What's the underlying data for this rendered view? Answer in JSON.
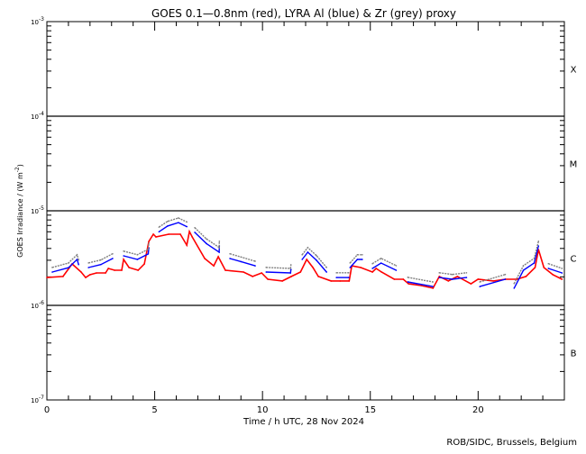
{
  "chart_data": {
    "type": "line",
    "title": "GOES 0.1—0.8nm (red), LYRA Al (blue) & Zr (grey) proxy",
    "xlabel": "Time / h UTC, 28 Nov 2024",
    "ylabel": "GOES Irradiance / (W m",
    "ylabel_sup": "-2",
    "ylabel_end": ")",
    "yscale": "log",
    "xlim": [
      0,
      24
    ],
    "ylim": [
      1e-07,
      0.001
    ],
    "xticks": [
      {
        "v": 0,
        "label": "0"
      },
      {
        "v": 5,
        "label": "5"
      },
      {
        "v": 10,
        "label": "10"
      },
      {
        "v": 15,
        "label": "15"
      },
      {
        "v": 20,
        "label": "20"
      }
    ],
    "yticks": [
      {
        "exp": -3,
        "base": "10",
        "sup": "-3"
      },
      {
        "exp": -4,
        "base": "10",
        "sup": "-4"
      },
      {
        "exp": -5,
        "base": "10",
        "sup": "-5"
      },
      {
        "exp": -6,
        "base": "10",
        "sup": "-6"
      },
      {
        "exp": -7,
        "base": "10",
        "sup": "-7"
      }
    ],
    "flare_classes": [
      {
        "label": "X",
        "exp": -3.5
      },
      {
        "label": "M",
        "exp": -4.5
      },
      {
        "label": "C",
        "exp": -5.5
      },
      {
        "label": "B",
        "exp": -6.5
      }
    ],
    "class_lines": [
      -4,
      -5,
      -6
    ],
    "series": [
      {
        "name": "GOES 0.1-0.8nm",
        "color": "#ff0000",
        "unit_scale": 1e-06,
        "segments": [
          [
            [
              0,
              1.97
            ],
            [
              0.75,
              2.02
            ],
            [
              1.17,
              2.74
            ],
            [
              1.59,
              2.25
            ],
            [
              1.8,
              1.97
            ],
            [
              2.0,
              2.11
            ],
            [
              2.3,
              2.2
            ],
            [
              2.72,
              2.2
            ],
            [
              2.85,
              2.46
            ],
            [
              3.14,
              2.35
            ],
            [
              3.47,
              2.35
            ],
            [
              3.56,
              3.06
            ],
            [
              3.81,
              2.51
            ],
            [
              4.23,
              2.35
            ],
            [
              4.52,
              2.74
            ],
            [
              4.73,
              4.74
            ],
            [
              4.94,
              5.65
            ],
            [
              5.06,
              5.29
            ],
            [
              5.65,
              5.65
            ],
            [
              6.19,
              5.65
            ],
            [
              6.49,
              4.34
            ],
            [
              6.61,
              6.04
            ],
            [
              6.74,
              5.29
            ],
            [
              7.32,
              3.13
            ],
            [
              7.74,
              2.62
            ],
            [
              7.95,
              3.27
            ],
            [
              8.28,
              2.35
            ],
            [
              9.12,
              2.25
            ],
            [
              9.54,
              2.02
            ],
            [
              9.96,
              2.2
            ],
            [
              10.25,
              1.89
            ],
            [
              10.92,
              1.81
            ],
            [
              11.34,
              2.02
            ],
            [
              11.76,
              2.25
            ],
            [
              12.05,
              3.06
            ],
            [
              12.34,
              2.51
            ],
            [
              12.59,
              2.02
            ],
            [
              13.18,
              1.81
            ],
            [
              13.6,
              1.81
            ],
            [
              14.02,
              1.81
            ],
            [
              14.14,
              2.62
            ],
            [
              14.56,
              2.51
            ],
            [
              15.1,
              2.25
            ],
            [
              15.27,
              2.46
            ],
            [
              15.52,
              2.25
            ],
            [
              16.11,
              1.89
            ],
            [
              16.53,
              1.89
            ],
            [
              16.78,
              1.69
            ],
            [
              17.36,
              1.62
            ],
            [
              17.91,
              1.52
            ],
            [
              18.2,
              2.02
            ],
            [
              18.62,
              1.81
            ],
            [
              19.04,
              2.02
            ],
            [
              19.67,
              1.69
            ],
            [
              20.0,
              1.89
            ],
            [
              20.71,
              1.81
            ],
            [
              21.26,
              1.89
            ],
            [
              21.8,
              1.89
            ],
            [
              22.22,
              2.02
            ],
            [
              22.64,
              2.51
            ],
            [
              22.8,
              3.89
            ],
            [
              23.05,
              2.51
            ],
            [
              23.47,
              2.11
            ],
            [
              23.89,
              1.89
            ]
          ]
        ]
      },
      {
        "name": "LYRA Al proxy",
        "color": "#0000ff",
        "unit_scale": 1e-06,
        "segments": [
          [
            [
              0.25,
              2.25
            ],
            [
              1.0,
              2.5
            ],
            [
              1.4,
              3.06
            ],
            [
              1.47,
              2.7
            ]
          ],
          [
            [
              1.93,
              2.51
            ],
            [
              2.5,
              2.7
            ],
            [
              3.05,
              3.13
            ]
          ],
          [
            [
              3.56,
              3.34
            ],
            [
              4.2,
              3.06
            ],
            [
              4.7,
              3.5
            ],
            [
              4.73,
              4.06
            ]
          ],
          [
            [
              5.2,
              6.0
            ],
            [
              5.6,
              6.9
            ],
            [
              6.1,
              7.5
            ],
            [
              6.49,
              6.8
            ]
          ],
          [
            [
              6.86,
              5.91
            ],
            [
              7.4,
              4.5
            ],
            [
              7.99,
              3.65
            ],
            [
              8.0,
              4.25
            ]
          ],
          [
            [
              8.49,
              3.13
            ],
            [
              9.0,
              2.9
            ],
            [
              9.66,
              2.62
            ]
          ],
          [
            [
              10.17,
              2.25
            ],
            [
              11.3,
              2.2
            ],
            [
              11.32,
              2.4
            ]
          ],
          [
            [
              11.84,
              3.06
            ],
            [
              12.1,
              3.65
            ],
            [
              12.5,
              3.0
            ],
            [
              12.97,
              2.25
            ]
          ],
          [
            [
              13.43,
              1.97
            ],
            [
              14.0,
              1.97
            ]
          ],
          [
            [
              14.06,
              2.51
            ],
            [
              14.4,
              3.06
            ],
            [
              14.63,
              3.06
            ]
          ],
          [
            [
              15.1,
              2.46
            ],
            [
              15.5,
              2.8
            ],
            [
              16.2,
              2.35
            ]
          ],
          [
            [
              16.74,
              1.77
            ],
            [
              17.9,
              1.58
            ]
          ],
          [
            [
              18.2,
              1.97
            ],
            [
              18.8,
              1.89
            ],
            [
              19.46,
              1.97
            ]
          ],
          [
            [
              20.08,
              1.58
            ],
            [
              21.26,
              1.89
            ]
          ],
          [
            [
              21.67,
              1.52
            ],
            [
              22.1,
              2.35
            ],
            [
              22.6,
              2.8
            ],
            [
              22.8,
              4.25
            ]
          ],
          [
            [
              23.26,
              2.46
            ],
            [
              23.89,
              2.2
            ]
          ]
        ]
      },
      {
        "name": "LYRA Zr proxy",
        "color": "#808080",
        "unit_scale": 1e-06,
        "segments": [
          [
            [
              0.25,
              2.52
            ],
            [
              1.0,
              2.8
            ],
            [
              1.4,
              3.43
            ],
            [
              1.47,
              3.02
            ]
          ],
          [
            [
              1.93,
              2.81
            ],
            [
              2.5,
              3.02
            ],
            [
              3.05,
              3.51
            ]
          ],
          [
            [
              3.56,
              3.74
            ],
            [
              4.2,
              3.43
            ],
            [
              4.7,
              3.92
            ],
            [
              4.73,
              4.55
            ]
          ],
          [
            [
              5.2,
              6.72
            ],
            [
              5.6,
              7.73
            ],
            [
              6.1,
              8.4
            ],
            [
              6.49,
              7.62
            ]
          ],
          [
            [
              6.86,
              6.62
            ],
            [
              7.4,
              5.04
            ],
            [
              7.99,
              4.09
            ],
            [
              8.0,
              4.76
            ]
          ],
          [
            [
              8.49,
              3.51
            ],
            [
              9.0,
              3.25
            ],
            [
              9.66,
              2.93
            ]
          ],
          [
            [
              10.17,
              2.52
            ],
            [
              11.3,
              2.46
            ],
            [
              11.32,
              2.69
            ]
          ],
          [
            [
              11.84,
              3.43
            ],
            [
              12.1,
              4.09
            ],
            [
              12.5,
              3.36
            ],
            [
              12.97,
              2.52
            ]
          ],
          [
            [
              13.43,
              2.21
            ],
            [
              14.0,
              2.21
            ]
          ],
          [
            [
              14.06,
              2.81
            ],
            [
              14.4,
              3.43
            ],
            [
              14.63,
              3.43
            ]
          ],
          [
            [
              15.1,
              2.76
            ],
            [
              15.5,
              3.14
            ],
            [
              16.2,
              2.63
            ]
          ],
          [
            [
              16.74,
              1.98
            ],
            [
              17.9,
              1.77
            ]
          ],
          [
            [
              18.2,
              2.21
            ],
            [
              18.8,
              2.12
            ],
            [
              19.46,
              2.21
            ]
          ],
          [
            [
              20.08,
              1.77
            ],
            [
              21.26,
              2.12
            ]
          ],
          [
            [
              21.67,
              1.7
            ],
            [
              22.1,
              2.63
            ],
            [
              22.6,
              3.14
            ],
            [
              22.8,
              4.76
            ]
          ],
          [
            [
              23.26,
              2.76
            ],
            [
              23.89,
              2.46
            ]
          ]
        ]
      }
    ]
  },
  "footer": "ROB/SIDC, Brussels, Belgium"
}
